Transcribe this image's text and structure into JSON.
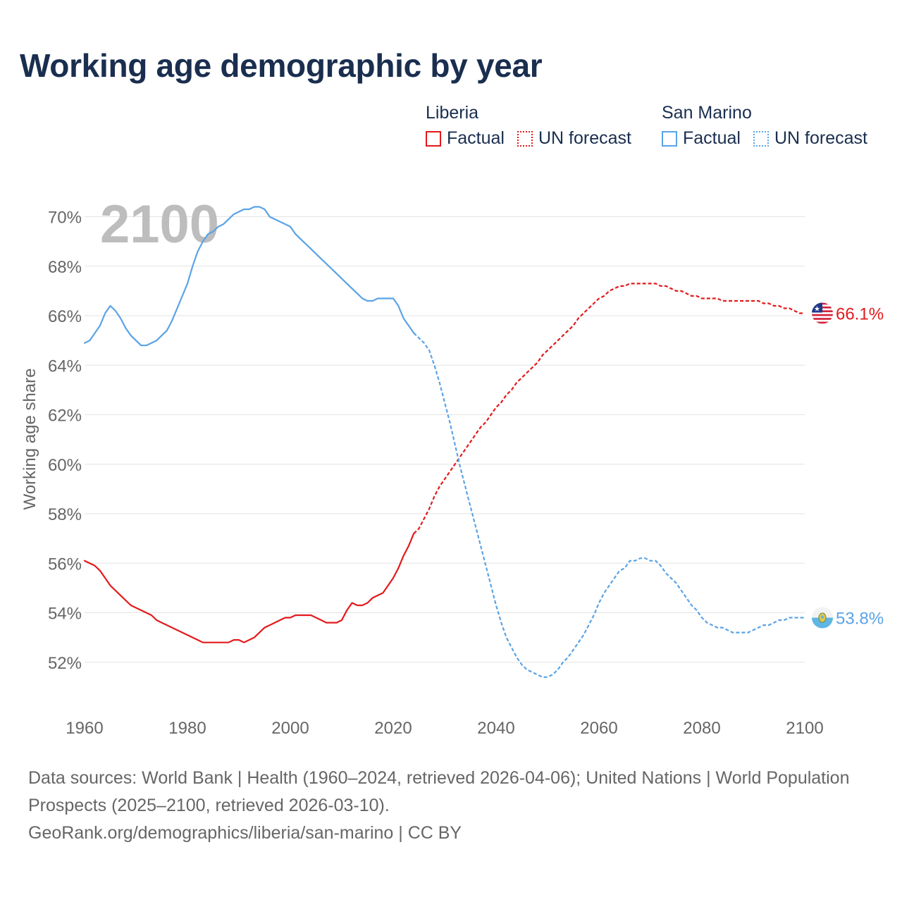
{
  "title": "Working age demographic by year",
  "legend": {
    "groups": [
      {
        "name": "Liberia",
        "color": "#e31a1c",
        "items": [
          {
            "label": "Factual",
            "style": "solid"
          },
          {
            "label": "UN forecast",
            "style": "dotted"
          }
        ]
      },
      {
        "name": "San Marino",
        "color": "#5aa3e6",
        "items": [
          {
            "label": "Factual",
            "style": "solid"
          },
          {
            "label": "UN forecast",
            "style": "dotted"
          }
        ]
      }
    ]
  },
  "chart_data": {
    "type": "line",
    "title": "Working age demographic by year",
    "xlabel": "",
    "ylabel": "Working age share",
    "xlim": [
      1960,
      2100
    ],
    "ylim": [
      50,
      70.5
    ],
    "x_ticks": [
      1960,
      1980,
      2000,
      2020,
      2040,
      2060,
      2080,
      2100
    ],
    "y_ticks": [
      {
        "value": 52,
        "label": "52%"
      },
      {
        "value": 54,
        "label": "54%"
      },
      {
        "value": 56,
        "label": "56%"
      },
      {
        "value": 58,
        "label": "58%"
      },
      {
        "value": 60,
        "label": "60%"
      },
      {
        "value": 62,
        "label": "62%"
      },
      {
        "value": 64,
        "label": "64%"
      },
      {
        "value": 66,
        "label": "66%"
      },
      {
        "value": 68,
        "label": "68%"
      },
      {
        "value": 70,
        "label": "70%"
      }
    ],
    "grid": true,
    "year_watermark": "2100",
    "factual_end_year": 2024,
    "series": [
      {
        "name": "Liberia",
        "color": "#e31a1c",
        "end_label": "66.1%",
        "flag_icon": "liberia-flag-icon",
        "points": [
          [
            1960,
            56.1
          ],
          [
            1961,
            56.0
          ],
          [
            1962,
            55.9
          ],
          [
            1963,
            55.7
          ],
          [
            1964,
            55.4
          ],
          [
            1965,
            55.1
          ],
          [
            1966,
            54.9
          ],
          [
            1967,
            54.7
          ],
          [
            1968,
            54.5
          ],
          [
            1969,
            54.3
          ],
          [
            1970,
            54.2
          ],
          [
            1971,
            54.1
          ],
          [
            1972,
            54.0
          ],
          [
            1973,
            53.9
          ],
          [
            1974,
            53.7
          ],
          [
            1975,
            53.6
          ],
          [
            1976,
            53.5
          ],
          [
            1977,
            53.4
          ],
          [
            1978,
            53.3
          ],
          [
            1979,
            53.2
          ],
          [
            1980,
            53.1
          ],
          [
            1981,
            53.0
          ],
          [
            1982,
            52.9
          ],
          [
            1983,
            52.8
          ],
          [
            1984,
            52.8
          ],
          [
            1985,
            52.8
          ],
          [
            1986,
            52.8
          ],
          [
            1987,
            52.8
          ],
          [
            1988,
            52.8
          ],
          [
            1989,
            52.9
          ],
          [
            1990,
            52.9
          ],
          [
            1991,
            52.8
          ],
          [
            1992,
            52.9
          ],
          [
            1993,
            53.0
          ],
          [
            1994,
            53.2
          ],
          [
            1995,
            53.4
          ],
          [
            1996,
            53.5
          ],
          [
            1997,
            53.6
          ],
          [
            1998,
            53.7
          ],
          [
            1999,
            53.8
          ],
          [
            2000,
            53.8
          ],
          [
            2001,
            53.9
          ],
          [
            2002,
            53.9
          ],
          [
            2003,
            53.9
          ],
          [
            2004,
            53.9
          ],
          [
            2005,
            53.8
          ],
          [
            2006,
            53.7
          ],
          [
            2007,
            53.6
          ],
          [
            2008,
            53.6
          ],
          [
            2009,
            53.6
          ],
          [
            2010,
            53.7
          ],
          [
            2011,
            54.1
          ],
          [
            2012,
            54.4
          ],
          [
            2013,
            54.3
          ],
          [
            2014,
            54.3
          ],
          [
            2015,
            54.4
          ],
          [
            2016,
            54.6
          ],
          [
            2017,
            54.7
          ],
          [
            2018,
            54.8
          ],
          [
            2019,
            55.1
          ],
          [
            2020,
            55.4
          ],
          [
            2021,
            55.8
          ],
          [
            2022,
            56.3
          ],
          [
            2023,
            56.7
          ],
          [
            2024,
            57.2
          ],
          [
            2025,
            57.4
          ],
          [
            2026,
            57.8
          ],
          [
            2027,
            58.2
          ],
          [
            2028,
            58.7
          ],
          [
            2029,
            59.1
          ],
          [
            2030,
            59.4
          ],
          [
            2031,
            59.7
          ],
          [
            2032,
            60.0
          ],
          [
            2033,
            60.3
          ],
          [
            2034,
            60.6
          ],
          [
            2035,
            60.9
          ],
          [
            2036,
            61.2
          ],
          [
            2037,
            61.5
          ],
          [
            2038,
            61.7
          ],
          [
            2039,
            62.0
          ],
          [
            2040,
            62.3
          ],
          [
            2041,
            62.5
          ],
          [
            2042,
            62.8
          ],
          [
            2043,
            63.0
          ],
          [
            2044,
            63.3
          ],
          [
            2045,
            63.5
          ],
          [
            2046,
            63.7
          ],
          [
            2047,
            63.9
          ],
          [
            2048,
            64.1
          ],
          [
            2049,
            64.4
          ],
          [
            2050,
            64.6
          ],
          [
            2051,
            64.8
          ],
          [
            2052,
            65.0
          ],
          [
            2053,
            65.2
          ],
          [
            2054,
            65.4
          ],
          [
            2055,
            65.6
          ],
          [
            2056,
            65.9
          ],
          [
            2057,
            66.1
          ],
          [
            2058,
            66.3
          ],
          [
            2059,
            66.5
          ],
          [
            2060,
            66.7
          ],
          [
            2061,
            66.8
          ],
          [
            2062,
            67.0
          ],
          [
            2063,
            67.1
          ],
          [
            2064,
            67.2
          ],
          [
            2065,
            67.2
          ],
          [
            2066,
            67.3
          ],
          [
            2067,
            67.3
          ],
          [
            2068,
            67.3
          ],
          [
            2069,
            67.3
          ],
          [
            2070,
            67.3
          ],
          [
            2071,
            67.3
          ],
          [
            2072,
            67.2
          ],
          [
            2073,
            67.2
          ],
          [
            2074,
            67.1
          ],
          [
            2075,
            67.0
          ],
          [
            2076,
            67.0
          ],
          [
            2077,
            66.9
          ],
          [
            2078,
            66.8
          ],
          [
            2079,
            66.8
          ],
          [
            2080,
            66.7
          ],
          [
            2081,
            66.7
          ],
          [
            2082,
            66.7
          ],
          [
            2083,
            66.7
          ],
          [
            2084,
            66.6
          ],
          [
            2085,
            66.6
          ],
          [
            2086,
            66.6
          ],
          [
            2087,
            66.6
          ],
          [
            2088,
            66.6
          ],
          [
            2089,
            66.6
          ],
          [
            2090,
            66.6
          ],
          [
            2091,
            66.6
          ],
          [
            2092,
            66.5
          ],
          [
            2093,
            66.5
          ],
          [
            2094,
            66.4
          ],
          [
            2095,
            66.4
          ],
          [
            2096,
            66.3
          ],
          [
            2097,
            66.3
          ],
          [
            2098,
            66.2
          ],
          [
            2099,
            66.1
          ],
          [
            2100,
            66.1
          ]
        ]
      },
      {
        "name": "San Marino",
        "color": "#5aa3e6",
        "end_label": "53.8%",
        "flag_icon": "san-marino-flag-icon",
        "points": [
          [
            1960,
            64.9
          ],
          [
            1961,
            65.0
          ],
          [
            1962,
            65.3
          ],
          [
            1963,
            65.6
          ],
          [
            1964,
            66.1
          ],
          [
            1965,
            66.4
          ],
          [
            1966,
            66.2
          ],
          [
            1967,
            65.9
          ],
          [
            1968,
            65.5
          ],
          [
            1969,
            65.2
          ],
          [
            1970,
            65.0
          ],
          [
            1971,
            64.8
          ],
          [
            1972,
            64.8
          ],
          [
            1973,
            64.9
          ],
          [
            1974,
            65.0
          ],
          [
            1975,
            65.2
          ],
          [
            1976,
            65.4
          ],
          [
            1977,
            65.8
          ],
          [
            1978,
            66.3
          ],
          [
            1979,
            66.8
          ],
          [
            1980,
            67.3
          ],
          [
            1981,
            68.0
          ],
          [
            1982,
            68.6
          ],
          [
            1983,
            69.0
          ],
          [
            1984,
            69.3
          ],
          [
            1985,
            69.4
          ],
          [
            1986,
            69.6
          ],
          [
            1987,
            69.7
          ],
          [
            1988,
            69.9
          ],
          [
            1989,
            70.1
          ],
          [
            1990,
            70.2
          ],
          [
            1991,
            70.3
          ],
          [
            1992,
            70.3
          ],
          [
            1993,
            70.4
          ],
          [
            1994,
            70.4
          ],
          [
            1995,
            70.3
          ],
          [
            1996,
            70.0
          ],
          [
            1997,
            69.9
          ],
          [
            1998,
            69.8
          ],
          [
            1999,
            69.7
          ],
          [
            2000,
            69.6
          ],
          [
            2001,
            69.3
          ],
          [
            2002,
            69.1
          ],
          [
            2003,
            68.9
          ],
          [
            2004,
            68.7
          ],
          [
            2005,
            68.5
          ],
          [
            2006,
            68.3
          ],
          [
            2007,
            68.1
          ],
          [
            2008,
            67.9
          ],
          [
            2009,
            67.7
          ],
          [
            2010,
            67.5
          ],
          [
            2011,
            67.3
          ],
          [
            2012,
            67.1
          ],
          [
            2013,
            66.9
          ],
          [
            2014,
            66.7
          ],
          [
            2015,
            66.6
          ],
          [
            2016,
            66.6
          ],
          [
            2017,
            66.7
          ],
          [
            2018,
            66.7
          ],
          [
            2019,
            66.7
          ],
          [
            2020,
            66.7
          ],
          [
            2021,
            66.4
          ],
          [
            2022,
            65.9
          ],
          [
            2023,
            65.6
          ],
          [
            2024,
            65.3
          ],
          [
            2025,
            65.1
          ],
          [
            2026,
            64.9
          ],
          [
            2027,
            64.6
          ],
          [
            2028,
            64.0
          ],
          [
            2029,
            63.3
          ],
          [
            2030,
            62.5
          ],
          [
            2031,
            61.7
          ],
          [
            2032,
            60.8
          ],
          [
            2033,
            59.9
          ],
          [
            2034,
            59.1
          ],
          [
            2035,
            58.3
          ],
          [
            2036,
            57.5
          ],
          [
            2037,
            56.7
          ],
          [
            2038,
            55.9
          ],
          [
            2039,
            55.1
          ],
          [
            2040,
            54.3
          ],
          [
            2041,
            53.6
          ],
          [
            2042,
            53.0
          ],
          [
            2043,
            52.6
          ],
          [
            2044,
            52.2
          ],
          [
            2045,
            51.9
          ],
          [
            2046,
            51.7
          ],
          [
            2047,
            51.6
          ],
          [
            2048,
            51.5
          ],
          [
            2049,
            51.4
          ],
          [
            2050,
            51.4
          ],
          [
            2051,
            51.5
          ],
          [
            2052,
            51.7
          ],
          [
            2053,
            52.0
          ],
          [
            2054,
            52.2
          ],
          [
            2055,
            52.5
          ],
          [
            2056,
            52.8
          ],
          [
            2057,
            53.1
          ],
          [
            2058,
            53.5
          ],
          [
            2059,
            53.9
          ],
          [
            2060,
            54.4
          ],
          [
            2061,
            54.8
          ],
          [
            2062,
            55.1
          ],
          [
            2063,
            55.4
          ],
          [
            2064,
            55.7
          ],
          [
            2065,
            55.8
          ],
          [
            2066,
            56.1
          ],
          [
            2067,
            56.1
          ],
          [
            2068,
            56.2
          ],
          [
            2069,
            56.2
          ],
          [
            2070,
            56.1
          ],
          [
            2071,
            56.1
          ],
          [
            2072,
            55.9
          ],
          [
            2073,
            55.6
          ],
          [
            2074,
            55.4
          ],
          [
            2075,
            55.2
          ],
          [
            2076,
            54.9
          ],
          [
            2077,
            54.6
          ],
          [
            2078,
            54.3
          ],
          [
            2079,
            54.1
          ],
          [
            2080,
            53.8
          ],
          [
            2081,
            53.6
          ],
          [
            2082,
            53.5
          ],
          [
            2083,
            53.4
          ],
          [
            2084,
            53.4
          ],
          [
            2085,
            53.3
          ],
          [
            2086,
            53.2
          ],
          [
            2087,
            53.2
          ],
          [
            2088,
            53.2
          ],
          [
            2089,
            53.2
          ],
          [
            2090,
            53.3
          ],
          [
            2091,
            53.4
          ],
          [
            2092,
            53.5
          ],
          [
            2093,
            53.5
          ],
          [
            2094,
            53.6
          ],
          [
            2095,
            53.7
          ],
          [
            2096,
            53.7
          ],
          [
            2097,
            53.8
          ],
          [
            2098,
            53.8
          ],
          [
            2099,
            53.8
          ],
          [
            2100,
            53.8
          ]
        ]
      }
    ]
  },
  "footer": {
    "sources": "Data sources: World Bank | Health (1960–2024, retrieved 2026-04-06); United Nations | World Population Prospects (2025–2100, retrieved 2026-03-10).",
    "attribution": "GeoRank.org/demographics/liberia/san-marino | CC BY"
  }
}
